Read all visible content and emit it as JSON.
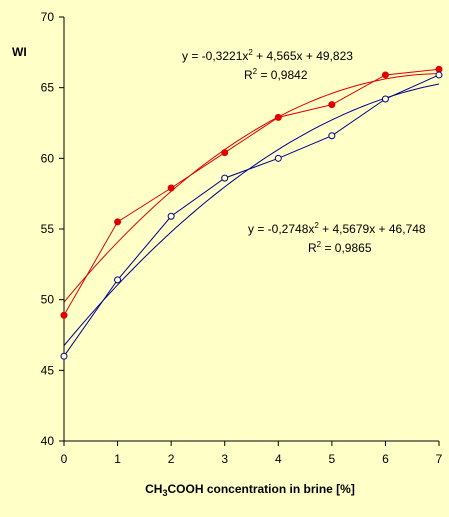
{
  "chart_data": {
    "type": "scatter",
    "ylabel": "WI",
    "xlabel": "CH3COOH concentration in brine [%]",
    "xlabel_parts": {
      "pre": "CH",
      "sub1": "3",
      "post": "COOH concentration in brine [%]"
    },
    "xlim": [
      0,
      7
    ],
    "ylim": [
      40,
      70
    ],
    "x_ticks": [
      0,
      1,
      2,
      3,
      4,
      5,
      6,
      7
    ],
    "y_ticks": [
      40,
      45,
      50,
      55,
      60,
      65,
      70
    ],
    "x_tick_labels": [
      "0",
      "1",
      "2",
      "3",
      "4",
      "5",
      "6",
      "7"
    ],
    "y_tick_labels": [
      "40",
      "45",
      "50",
      "55",
      "60",
      "65",
      "70"
    ],
    "grid": false,
    "series": [
      {
        "marker": "filled-circle",
        "color": "#e00000",
        "x": [
          0,
          1,
          2,
          3,
          4,
          5,
          6,
          7
        ],
        "y": [
          48.9,
          55.5,
          57.9,
          60.4,
          62.9,
          63.8,
          65.9,
          66.3
        ],
        "trendline": {
          "a": -0.3221,
          "b": 4.565,
          "c": 49.823
        },
        "equation": {
          "pre": "y = -0,3221x",
          "sup": "2",
          "post": " + 4,565x + 49,823"
        },
        "r2": {
          "pre": "R",
          "sup": "2",
          "post": " = 0,9842"
        }
      },
      {
        "marker": "open-circle",
        "color": "#00008c",
        "x": [
          0,
          1,
          2,
          3,
          4,
          5,
          6,
          7
        ],
        "y": [
          46.0,
          51.4,
          55.9,
          58.6,
          60.0,
          61.6,
          64.2,
          65.9
        ],
        "trendline": {
          "a": -0.2748,
          "b": 4.5679,
          "c": 46.748
        },
        "equation": {
          "pre": "y = -0,2748x",
          "sup": "2",
          "post": " + 4,5679x + 46,748"
        },
        "r2": {
          "pre": "R",
          "sup": "2",
          "post": " = 0,9865"
        }
      }
    ],
    "colors": {
      "background": "#ffffc8",
      "axis": "#000000"
    }
  }
}
